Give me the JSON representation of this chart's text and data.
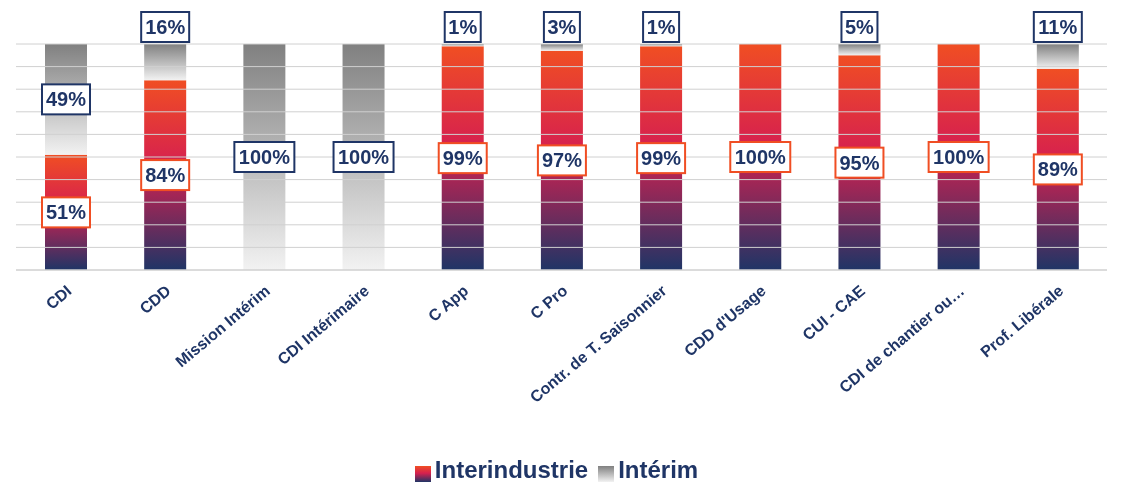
{
  "chart_data": {
    "type": "bar",
    "stacked": true,
    "categories": [
      "CDI",
      "CDD",
      "Mission Intérim",
      "CDI Intérimaire",
      "C App",
      "C Pro",
      "Contr. de T. Saisonnier",
      "CDD d'Usage",
      "CUI - CAE",
      "CDI de chantier ou…",
      "Prof. Libérale"
    ],
    "series": [
      {
        "name": "Interindustrie",
        "color": "#f04e23",
        "values": [
          51,
          84,
          0,
          0,
          99,
          97,
          99,
          100,
          95,
          100,
          89
        ],
        "value_labels": [
          "51%",
          "84%",
          null,
          null,
          "99%",
          "97%",
          "99%",
          "100%",
          "95%",
          "100%",
          "89%"
        ]
      },
      {
        "name": "Intérim",
        "color": "#808080",
        "values": [
          49,
          16,
          100,
          100,
          1,
          3,
          1,
          0,
          5,
          0,
          11
        ],
        "value_labels": [
          "49%",
          "16%",
          "100%",
          "100%",
          "1%",
          "3%",
          "1%",
          null,
          "5%",
          null,
          "11%"
        ]
      }
    ],
    "ylim": [
      0,
      100
    ],
    "yticks": [
      {
        "value": 0,
        "label": null
      },
      {
        "value": 10,
        "label": null
      },
      {
        "value": 20,
        "label": null
      },
      {
        "value": 30,
        "label": null
      },
      {
        "value": 40,
        "label": null
      },
      {
        "value": 50,
        "label": null
      },
      {
        "value": 60,
        "label": null
      },
      {
        "value": 70,
        "label": null
      },
      {
        "value": 80,
        "label": null
      },
      {
        "value": 90,
        "label": null
      },
      {
        "value": 100,
        "label": null
      }
    ],
    "tick_labels": "x",
    "grid": "y",
    "legend": "bottom"
  }
}
